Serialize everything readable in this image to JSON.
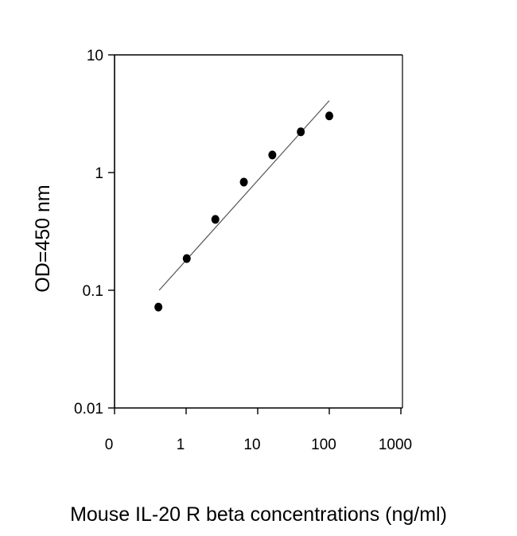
{
  "chart_data": {
    "type": "scatter",
    "title": "",
    "xlabel": "Mouse IL-20 R beta concentrations (ng/ml)",
    "ylabel": "OD=450 nm",
    "x_scale": "log",
    "y_scale": "log",
    "xlim": [
      0.1,
      1000
    ],
    "ylim": [
      0.01,
      10
    ],
    "x_ticks": [
      0.1,
      1,
      10,
      100,
      1000
    ],
    "x_tick_labels": [
      "0",
      "1",
      "10",
      "100",
      "1000"
    ],
    "y_ticks": [
      0.01,
      0.1,
      1,
      10
    ],
    "y_tick_labels": [
      "0.01",
      "0.1",
      "1",
      "10"
    ],
    "grid": false,
    "series": [
      {
        "x": [
          0.41,
          1.02,
          2.56,
          6.4,
          16,
          40,
          100
        ],
        "y": [
          0.072,
          0.186,
          0.4,
          0.83,
          1.41,
          2.22,
          3.03
        ],
        "marker": "filled-circle",
        "color": "#000000"
      }
    ],
    "fit_line": {
      "x": [
        0.42,
        100
      ],
      "y": [
        0.1,
        4.08
      ],
      "color": "#555555"
    }
  }
}
